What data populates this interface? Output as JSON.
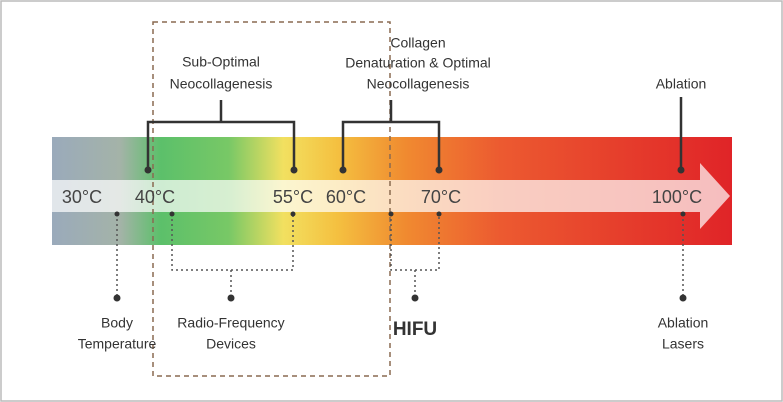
{
  "temperature_scale": {
    "temperatures": [
      "30°C",
      "40°C",
      "55°C",
      "60°C",
      "70°C",
      "100°C"
    ],
    "effects": [
      {
        "lines": [
          "Sub-Optimal",
          "Neocollagenesis"
        ]
      },
      {
        "lines": [
          "Collagen",
          "Denaturation & Optimal",
          "Neocollagenesis"
        ]
      },
      {
        "lines": [
          "Ablation"
        ]
      }
    ],
    "devices": [
      {
        "lines": [
          "Body",
          "Temperature"
        ]
      },
      {
        "lines": [
          "Radio-Frequency",
          "Devices"
        ]
      },
      {
        "lines": [
          "HIFU"
        ]
      },
      {
        "lines": [
          "Ablation",
          "Lasers"
        ]
      }
    ]
  }
}
